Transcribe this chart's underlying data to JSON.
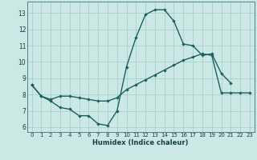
{
  "xlabel": "Humidex (Indice chaleur)",
  "background_color": "#cce8e4",
  "grid_color": "#aacfcb",
  "line_color": "#1a6060",
  "line1_y": [
    8.6,
    7.9,
    7.6,
    7.2,
    7.1,
    6.7,
    6.7,
    6.2,
    6.1,
    7.0,
    9.7,
    11.5,
    12.9,
    13.2,
    13.2,
    12.5,
    11.1,
    11.0,
    10.4,
    10.5,
    9.3,
    8.7,
    null,
    null
  ],
  "line2_y": [
    8.6,
    7.9,
    7.7,
    7.9,
    7.9,
    7.8,
    7.7,
    7.6,
    7.6,
    7.8,
    8.3,
    8.6,
    8.9,
    9.2,
    9.5,
    9.8,
    10.1,
    10.3,
    10.5,
    10.4,
    8.1,
    8.1,
    8.1,
    8.1
  ],
  "ylim": [
    5.7,
    13.7
  ],
  "xlim": [
    -0.5,
    23.5
  ],
  "yticks": [
    6,
    7,
    8,
    9,
    10,
    11,
    12,
    13
  ],
  "xticks": [
    0,
    1,
    2,
    3,
    4,
    5,
    6,
    7,
    8,
    9,
    10,
    11,
    12,
    13,
    14,
    15,
    16,
    17,
    18,
    19,
    20,
    21,
    22,
    23
  ]
}
